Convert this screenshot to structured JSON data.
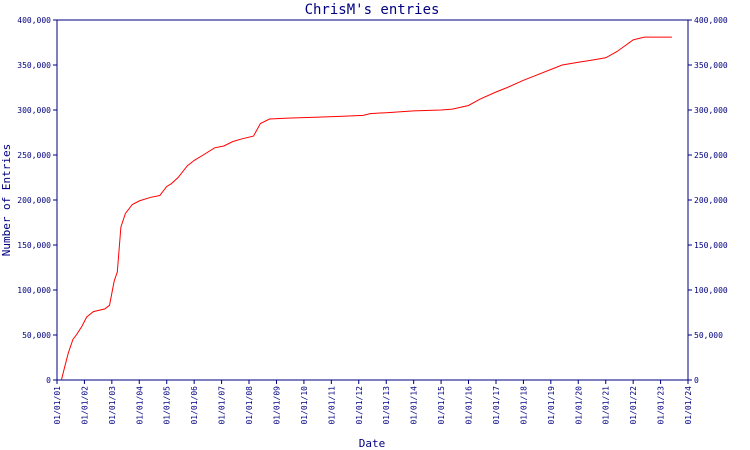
{
  "chart_data": {
    "type": "line",
    "title": "ChrisM's entries",
    "xlabel": "Date",
    "ylabel": "Number of Entries",
    "ylim": [
      0,
      400000
    ],
    "y_ticks": [
      0,
      50000,
      100000,
      150000,
      200000,
      250000,
      300000,
      350000,
      400000
    ],
    "y_tick_labels": [
      "0",
      "50,000",
      "100,000",
      "150,000",
      "200,000",
      "250,000",
      "300,000",
      "350,000",
      "400,000"
    ],
    "x_tick_labels": [
      "01/01/01",
      "01/01/02",
      "01/01/03",
      "01/01/04",
      "01/01/05",
      "01/01/06",
      "01/01/07",
      "01/01/08",
      "01/01/09",
      "01/01/10",
      "01/01/11",
      "01/01/12",
      "01/01/13",
      "01/01/14",
      "01/01/15",
      "01/01/16",
      "01/01/17",
      "01/01/18",
      "01/01/19",
      "01/01/20",
      "01/01/21",
      "01/01/22",
      "01/01/23",
      "01/01/24"
    ],
    "xlim": [
      "2001-01-01",
      "2024-01-01"
    ],
    "grid": false,
    "series_color": "#ff0000",
    "axis_color": "#000080",
    "series": [
      {
        "x": [
          "2001-03-01",
          "2001-04-15",
          "2001-06-01",
          "2001-08-01",
          "2001-09-15",
          "2001-12-01",
          "2002-02-01",
          "2002-05-01",
          "2002-10-01",
          "2002-12-01",
          "2003-02-01",
          "2003-03-15",
          "2003-05-01",
          "2003-07-01",
          "2003-10-01",
          "2004-01-01",
          "2004-06-01",
          "2004-10-01",
          "2005-01-01",
          "2005-03-01",
          "2005-06-01",
          "2005-10-01",
          "2006-01-01",
          "2006-05-01",
          "2006-10-01",
          "2007-02-01",
          "2007-06-01",
          "2007-10-01",
          "2008-03-01",
          "2008-06-01",
          "2008-10-01",
          "2009-06-01",
          "2010-06-01",
          "2011-06-01",
          "2012-03-01",
          "2012-06-01",
          "2013-01-01",
          "2014-01-01",
          "2015-01-01",
          "2015-06-01",
          "2016-01-01",
          "2016-06-01",
          "2017-01-01",
          "2017-06-01",
          "2018-01-01",
          "2018-06-01",
          "2019-01-01",
          "2019-06-01",
          "2020-01-01",
          "2020-06-01",
          "2021-01-01",
          "2021-06-01",
          "2022-01-01",
          "2022-06-01",
          "2023-01-01",
          "2023-06-01"
        ],
        "y": [
          0,
          15000,
          30000,
          45000,
          50000,
          60000,
          70000,
          76000,
          79000,
          83000,
          110000,
          120000,
          170000,
          185000,
          195000,
          199000,
          203000,
          205000,
          215000,
          218000,
          225000,
          238000,
          244000,
          250000,
          258000,
          260000,
          265000,
          268000,
          271000,
          285000,
          290000,
          291000,
          292000,
          293000,
          294000,
          296000,
          297000,
          299000,
          300000,
          301000,
          305000,
          312000,
          320000,
          325000,
          333000,
          338000,
          345000,
          350000,
          353000,
          355000,
          358000,
          365000,
          378000,
          381000,
          381000,
          381000
        ]
      }
    ]
  }
}
